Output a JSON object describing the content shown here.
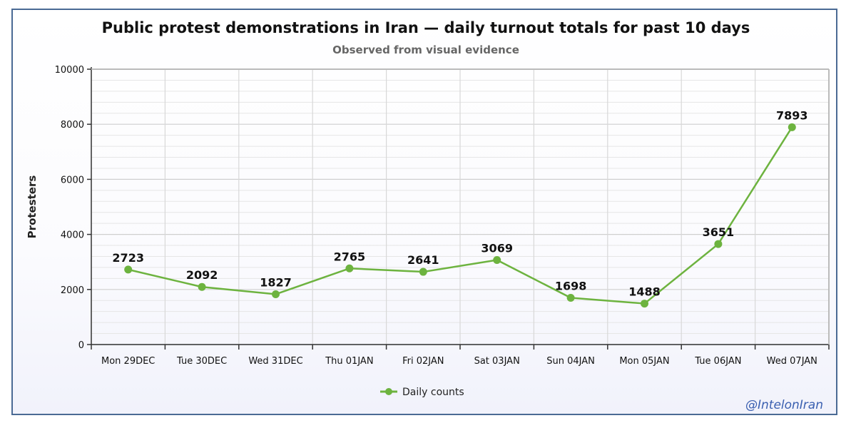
{
  "chart_data": {
    "type": "line",
    "title": "Public protest demonstrations in Iran — daily turnout totals for past 10 days",
    "subtitle": "Observed from visual evidence",
    "xlabel": "",
    "ylabel": "Protesters",
    "ylim": [
      0,
      10000
    ],
    "yticks": [
      0,
      2000,
      4000,
      6000,
      8000,
      10000
    ],
    "grid": true,
    "legend_position": "bottom-center",
    "categories": [
      "Mon 29DEC",
      "Tue 30DEC",
      "Wed 31DEC",
      "Thu 01JAN",
      "Fri 02JAN",
      "Sat 03JAN",
      "Sun 04JAN",
      "Mon 05JAN",
      "Tue 06JAN",
      "Wed 07JAN"
    ],
    "series": [
      {
        "name": "Daily counts",
        "color": "#6db33f",
        "values": [
          2723,
          2092,
          1827,
          2765,
          2641,
          3069,
          1698,
          1488,
          3651,
          7893
        ]
      }
    ],
    "credit": "@IntelonIran"
  }
}
